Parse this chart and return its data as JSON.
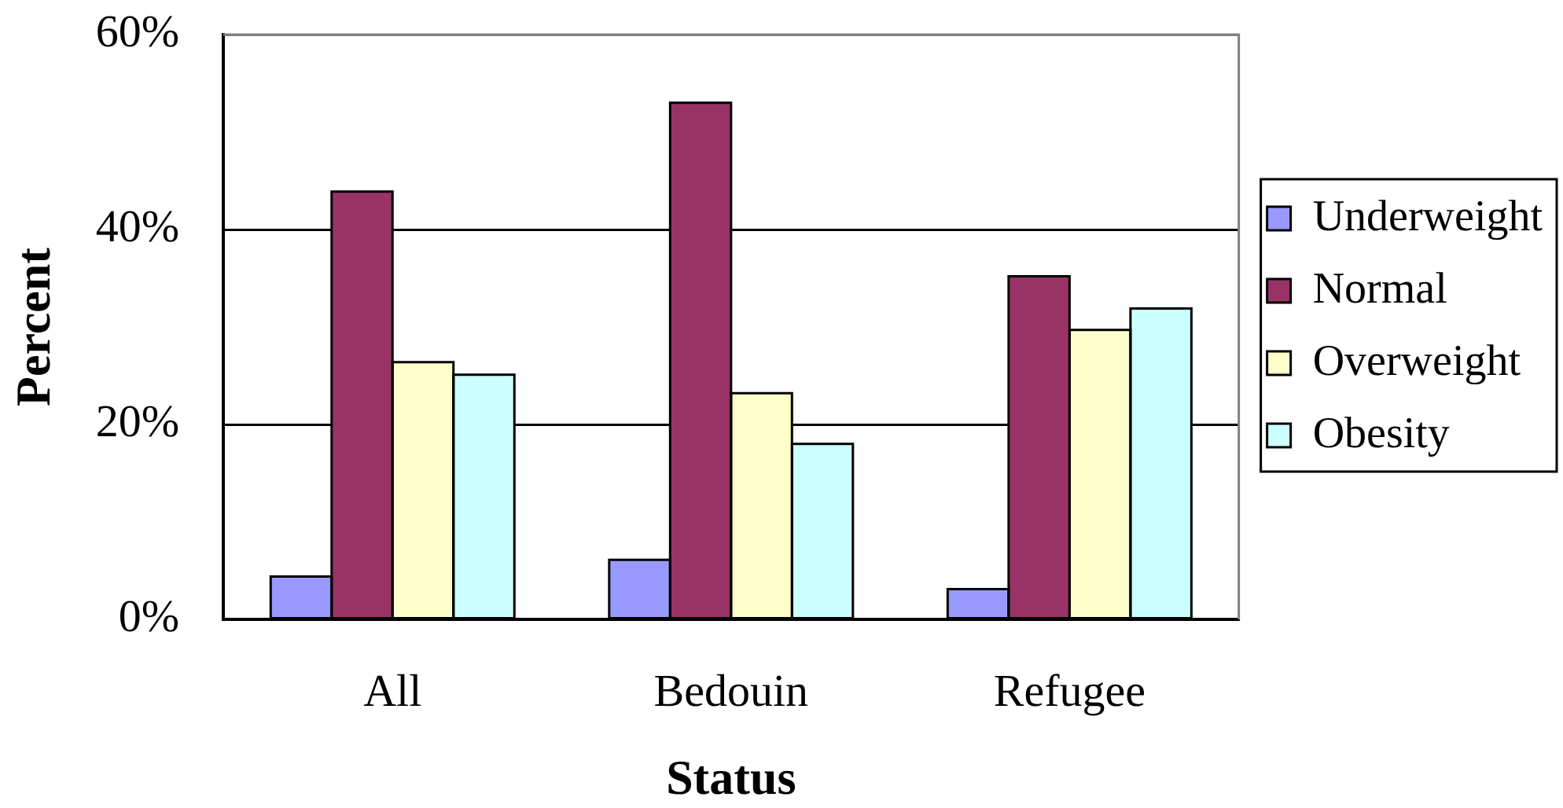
{
  "chart_data": {
    "type": "bar",
    "xlabel": "Status",
    "ylabel": "Percent",
    "categories": [
      "All",
      "Bedouin",
      "Refugee"
    ],
    "series": [
      {
        "name": "Underweight",
        "color": "#9999ff",
        "values": [
          4.4,
          6.1,
          3.1
        ]
      },
      {
        "name": "Normal",
        "color": "#993366",
        "values": [
          43.9,
          53.0,
          35.2
        ]
      },
      {
        "name": "Overweight",
        "color": "#ffffcc",
        "values": [
          26.4,
          23.2,
          29.7
        ]
      },
      {
        "name": "Obesity",
        "color": "#ccffff",
        "values": [
          25.1,
          18.0,
          31.9
        ]
      }
    ],
    "ylim": [
      0,
      60
    ],
    "yticks": [
      {
        "value": 0,
        "label": "0%"
      },
      {
        "value": 20,
        "label": "20%"
      },
      {
        "value": 40,
        "label": "40%"
      },
      {
        "value": 60,
        "label": "60%"
      }
    ],
    "grid": "y",
    "legend": "right"
  }
}
